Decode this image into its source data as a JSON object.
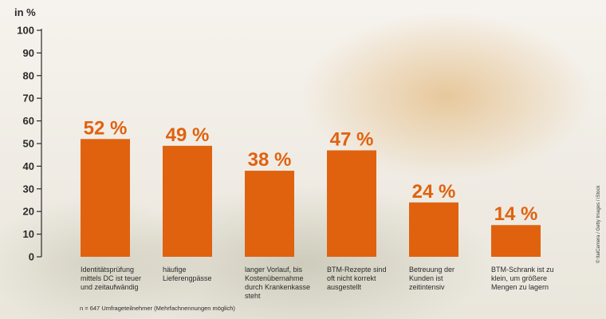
{
  "chart_data": {
    "type": "bar",
    "ylabel": "in %",
    "ylim": [
      0,
      100
    ],
    "yticks": [
      0,
      10,
      20,
      30,
      40,
      50,
      60,
      70,
      80,
      90,
      100
    ],
    "categories": [
      [
        "Identitätsprüfung",
        "mittels DC ist teuer",
        "und zeitaufwändig"
      ],
      [
        "häufige",
        "Lieferengpässe"
      ],
      [
        "langer Vorlauf, bis",
        "Kostenübernahme",
        "durch Krankenkasse",
        "steht"
      ],
      [
        "BTM-Rezepte sind",
        "oft nicht korrekt",
        "ausgestellt"
      ],
      [
        "Betreuung der",
        "Kunden ist",
        "zeitintensiv"
      ],
      [
        "BTM-Schrank ist zu",
        "klein, um größere",
        "Mengen zu lagern"
      ]
    ],
    "values": [
      52,
      49,
      38,
      47,
      24,
      14
    ],
    "value_labels": [
      "52 %",
      "49 %",
      "38 %",
      "47 %",
      "24 %",
      "14 %"
    ],
    "bar_color": "#e0620f",
    "grid": false,
    "footnote": "n = 647 Umfrageteilnehmer (Mehrfachnennungen möglich)",
    "credit": "© ItalCamera / Getty Images / iStock"
  }
}
